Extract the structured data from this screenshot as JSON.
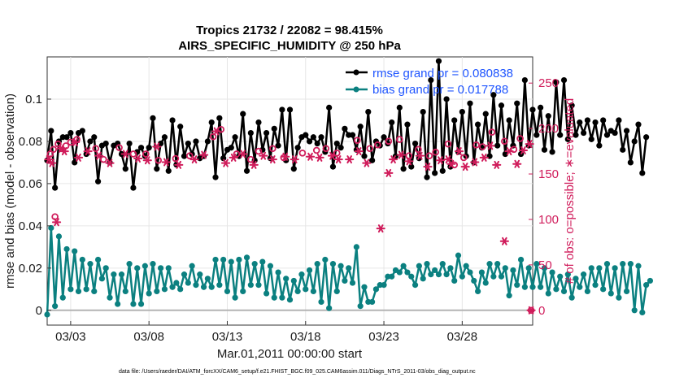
{
  "chart_data": {
    "type": "line",
    "title": [
      "Tropics 21732 / 22082 = 98.415%",
      "AIRS_SPECIFIC_HUMIDITY @ 250 hPa"
    ],
    "xlabel": "Mar.01,2011 00:00:00 start",
    "ylabel_left": "rmse and bias (model - observation)",
    "ylabel_right": "# of obs: o=possible; ∗=evaluated",
    "x_range": [
      1.5,
      32.5
    ],
    "y_left_range": [
      -0.007,
      0.12
    ],
    "y_right_range": [
      -16.26,
      278.8
    ],
    "x_ticks": [
      {
        "x": 3,
        "label": "03/03"
      },
      {
        "x": 8,
        "label": "03/08"
      },
      {
        "x": 13,
        "label": "03/13"
      },
      {
        "x": 18,
        "label": "03/18"
      },
      {
        "x": 23,
        "label": "03/23"
      },
      {
        "x": 28,
        "label": "03/28"
      }
    ],
    "y_left_ticks": [
      {
        "v": 0,
        "label": "0"
      },
      {
        "v": 0.02,
        "label": "0.02"
      },
      {
        "v": 0.04,
        "label": "0.04"
      },
      {
        "v": 0.06,
        "label": "0.06"
      },
      {
        "v": 0.08,
        "label": "0.08"
      },
      {
        "v": 0.1,
        "label": "0.1"
      }
    ],
    "y_right_ticks": [
      {
        "v": 0,
        "label": "0"
      },
      {
        "v": 50,
        "label": "50"
      },
      {
        "v": 100,
        "label": "100"
      },
      {
        "v": 150,
        "label": "150"
      },
      {
        "v": 200,
        "label": "200"
      },
      {
        "v": 250,
        "label": "250"
      }
    ],
    "legend": [
      {
        "label": "rmse grand pr = 0.080838",
        "color": "#000000"
      },
      {
        "label": "bias grand pr = 0.017788",
        "color": "#0b8080"
      }
    ],
    "series": [
      {
        "name": "rmse",
        "axis": "left",
        "color": "#000000",
        "marker": "circle",
        "x_start": 1.5,
        "dx": 0.25,
        "values": [
          0.071,
          0.085,
          0.058,
          0.08,
          0.082,
          0.082,
          0.084,
          0.07,
          0.084,
          0.085,
          0.074,
          0.08,
          0.082,
          0.061,
          0.078,
          0.079,
          0.07,
          0.078,
          0.079,
          0.074,
          0.067,
          0.079,
          0.058,
          0.075,
          0.077,
          0.073,
          0.077,
          0.091,
          0.067,
          0.079,
          0.082,
          0.066,
          0.09,
          0.069,
          0.087,
          0.073,
          0.079,
          0.074,
          0.08,
          0.072,
          0.073,
          0.08,
          0.089,
          0.063,
          0.091,
          0.072,
          0.076,
          0.077,
          0.082,
          0.073,
          0.093,
          0.066,
          0.084,
          0.071,
          0.089,
          0.076,
          0.084,
          0.072,
          0.086,
          0.078,
          0.095,
          0.071,
          0.095,
          0.067,
          0.077,
          0.082,
          0.083,
          0.08,
          0.082,
          0.079,
          0.082,
          0.075,
          0.096,
          0.068,
          0.079,
          0.077,
          0.086,
          0.083,
          0.083,
          0.076,
          0.087,
          0.073,
          0.094,
          0.071,
          0.08,
          0.078,
          0.082,
          0.079,
          0.089,
          0.073,
          0.096,
          0.067,
          0.088,
          0.068,
          0.079,
          0.072,
          0.094,
          0.063,
          0.109,
          0.065,
          0.118,
          0.066,
          0.1,
          0.068,
          0.09,
          0.075,
          0.094,
          0.073,
          0.098,
          0.07,
          0.088,
          0.077,
          0.093,
          0.073,
          0.102,
          0.078,
          0.097,
          0.074,
          0.09,
          0.078,
          0.098,
          0.074,
          0.109,
          0.078,
          0.095,
          0.083,
          0.096,
          0.076,
          0.092,
          0.075,
          0.108,
          0.083,
          0.109,
          0.081,
          0.097,
          0.083,
          0.089,
          0.084,
          0.09,
          0.081,
          0.089,
          0.078,
          0.09,
          0.083,
          0.085,
          0.084,
          0.09,
          0.076,
          0.085,
          0.07,
          0.08,
          0.088,
          0.065,
          0.082
        ]
      },
      {
        "name": "bias",
        "axis": "left",
        "color": "#0b8080",
        "marker": "circle",
        "x_start": 1.5,
        "dx": 0.25,
        "values": [
          -0.002,
          0.039,
          0.002,
          0.035,
          0.006,
          0.029,
          0.01,
          0.028,
          0.009,
          0.024,
          0.01,
          0.022,
          0.009,
          0.024,
          0.015,
          0.02,
          0.006,
          0.017,
          0.003,
          0.017,
          0.009,
          0.022,
          0.003,
          0.02,
          0.003,
          0.021,
          0.008,
          0.022,
          0.009,
          0.02,
          0.01,
          0.02,
          0.011,
          0.013,
          0.01,
          0.017,
          0.013,
          0.021,
          0.012,
          0.017,
          0.011,
          0.015,
          0.011,
          0.024,
          0.012,
          0.024,
          0.009,
          0.023,
          0.006,
          0.024,
          0.009,
          0.025,
          0.012,
          0.022,
          0.012,
          0.023,
          0.008,
          0.021,
          0.006,
          0.018,
          0.006,
          0.015,
          0.005,
          0.014,
          0.009,
          0.017,
          0.01,
          0.019,
          0.009,
          0.022,
          0.004,
          0.024,
          0.001,
          0.022,
          0.009,
          0.021,
          0.014,
          0.02,
          0.013,
          0.03,
          0.002,
          0.011,
          0.004,
          0.004,
          0.01,
          0.012,
          0.012,
          0.016,
          0.016,
          0.019,
          0.018,
          0.021,
          0.018,
          0.016,
          0.012,
          0.021,
          0.015,
          0.022,
          0.017,
          0.019,
          0.017,
          0.022,
          0.017,
          0.02,
          0.014,
          0.026,
          0.016,
          0.021,
          0.018,
          0.014,
          0.009,
          0.018,
          0.013,
          0.022,
          0.016,
          0.022,
          0.016,
          0.02,
          0.007,
          0.019,
          0.012,
          0.024,
          0.011,
          0.02,
          0.011,
          0.022,
          0.011,
          0.02,
          0.008,
          0.018,
          0.01,
          0.016,
          0.009,
          0.017,
          0.006,
          0.015,
          0.011,
          0.017,
          0.009,
          0.02,
          0.012,
          0.02,
          0.01,
          0.022,
          0.008,
          0.02,
          0.006,
          0.022,
          0.009,
          0.022,
          0.0,
          0.021,
          -0.001,
          0.012,
          0.014
        ]
      },
      {
        "name": "possible",
        "axis": "right",
        "color": "#d01c5b",
        "marker": "circle",
        "points": [
          [
            1.7,
            172
          ],
          [
            1.9,
            177
          ],
          [
            2.0,
            103
          ],
          [
            2.2,
            183
          ],
          [
            2.7,
            181
          ],
          [
            3.0,
            185
          ],
          [
            3.4,
            188
          ],
          [
            4.6,
            178
          ],
          [
            5.1,
            166
          ],
          [
            6.1,
            179
          ],
          [
            7.0,
            172
          ],
          [
            7.8,
            172
          ],
          [
            8.6,
            165
          ],
          [
            9.7,
            167
          ],
          [
            10.6,
            170
          ],
          [
            12.1,
            191
          ],
          [
            12.6,
            199
          ],
          [
            13.6,
            172
          ],
          [
            14.5,
            166
          ],
          [
            15.0,
            175
          ],
          [
            15.9,
            178
          ],
          [
            16.6,
            168
          ],
          [
            17.8,
            173
          ],
          [
            18.7,
            176
          ],
          [
            19.3,
            178
          ],
          [
            20.0,
            173
          ],
          [
            21.3,
            187
          ],
          [
            22.1,
            178
          ],
          [
            22.6,
            182
          ],
          [
            23.3,
            186
          ],
          [
            24.0,
            188
          ],
          [
            24.6,
            170
          ],
          [
            25.2,
            177
          ],
          [
            25.9,
            170
          ],
          [
            26.3,
            174
          ],
          [
            27.1,
            183
          ],
          [
            27.5,
            160
          ],
          [
            28.1,
            168
          ],
          [
            28.9,
            182
          ],
          [
            29.3,
            180
          ],
          [
            29.9,
            196
          ],
          [
            30.7,
            186
          ],
          [
            31.3,
            177
          ],
          [
            31.7,
            189
          ],
          [
            32.4,
            0
          ]
        ]
      },
      {
        "name": "evaluated",
        "axis": "right",
        "color": "#d01c5b",
        "marker": "star",
        "points": [
          [
            1.6,
            166
          ],
          [
            1.8,
            162
          ],
          [
            2.1,
            97
          ],
          [
            2.4,
            178
          ],
          [
            2.6,
            175
          ],
          [
            3.3,
            185
          ],
          [
            3.5,
            168
          ],
          [
            4.1,
            175
          ],
          [
            4.8,
            170
          ],
          [
            5.5,
            162
          ],
          [
            6.5,
            172
          ],
          [
            7.3,
            167
          ],
          [
            7.9,
            165
          ],
          [
            8.5,
            180
          ],
          [
            9.1,
            163
          ],
          [
            9.9,
            160
          ],
          [
            10.9,
            166
          ],
          [
            11.5,
            171
          ],
          [
            12.3,
            197
          ],
          [
            12.9,
            162
          ],
          [
            13.4,
            168
          ],
          [
            14.0,
            172
          ],
          [
            14.7,
            160
          ],
          [
            15.3,
            170
          ],
          [
            15.9,
            166
          ],
          [
            16.7,
            169
          ],
          [
            17.3,
            166
          ],
          [
            18.3,
            169
          ],
          [
            18.9,
            168
          ],
          [
            19.7,
            170
          ],
          [
            20.1,
            166
          ],
          [
            20.8,
            166
          ],
          [
            21.4,
            175
          ],
          [
            21.9,
            162
          ],
          [
            22.8,
            90
          ],
          [
            23.3,
            151
          ],
          [
            23.6,
            166
          ],
          [
            24.1,
            171
          ],
          [
            24.6,
            164
          ],
          [
            25.3,
            170
          ],
          [
            25.8,
            158
          ],
          [
            26.6,
            165
          ],
          [
            27.1,
            166
          ],
          [
            27.3,
            161
          ],
          [
            27.8,
            175
          ],
          [
            28.2,
            158
          ],
          [
            28.8,
            163
          ],
          [
            29.4,
            168
          ],
          [
            29.8,
            181
          ],
          [
            30.2,
            160
          ],
          [
            30.7,
            76
          ],
          [
            31.0,
            175
          ],
          [
            31.5,
            161
          ],
          [
            31.9,
            176
          ],
          [
            32.3,
            183
          ],
          [
            32.4,
            0
          ]
        ]
      }
    ]
  },
  "footer": "data file: /Users/raeder/DAI/ATM_forcXX/CAM6_setup/f.e21.FHIST_BGC.f09_025.CAM6assim.011/Diags_NTrS_2011-03/obs_diag_output.nc"
}
